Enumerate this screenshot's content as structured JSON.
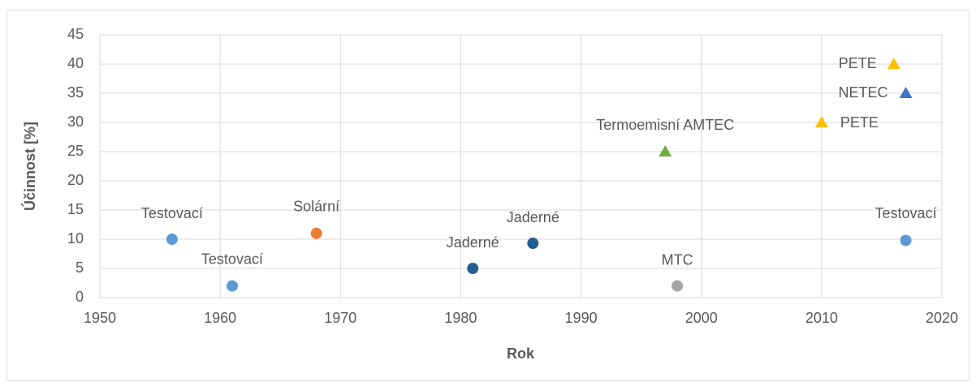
{
  "chart_data": {
    "type": "scatter",
    "x_label": "Rok",
    "y_label": "Účinnost [%]",
    "xlim": [
      1950,
      2020
    ],
    "xticks": [
      1950,
      1960,
      1970,
      1980,
      1990,
      2000,
      2010,
      2020
    ],
    "ylim": [
      0,
      45
    ],
    "yticks": [
      0,
      5,
      10,
      15,
      20,
      25,
      30,
      35,
      40,
      45
    ],
    "grid": true,
    "points": [
      {
        "label": "Testovací",
        "x": 1956,
        "y": 10,
        "color": "#5b9bd5",
        "marker": "circle"
      },
      {
        "label": "Testovací",
        "x": 1961,
        "y": 2,
        "color": "#5b9bd5",
        "marker": "circle"
      },
      {
        "label": "Solární",
        "x": 1968,
        "y": 11,
        "color": "#ed7d31",
        "marker": "circle"
      },
      {
        "label": "Jaderné",
        "x": 1981,
        "y": 5,
        "color": "#255e91",
        "marker": "circle"
      },
      {
        "label": "Jaderné",
        "x": 1986,
        "y": 9.3,
        "color": "#255e91",
        "marker": "circle"
      },
      {
        "label": "Termoemisní AMTEC",
        "x": 1997,
        "y": 25,
        "color": "#70ad47",
        "marker": "triangle"
      },
      {
        "label": "MTC",
        "x": 1998,
        "y": 2,
        "color": "#a5a5a5",
        "marker": "circle"
      },
      {
        "label": "PETE",
        "x": 2010,
        "y": 30,
        "color": "#ffc000",
        "marker": "triangle"
      },
      {
        "label": "PETE",
        "x": 2016,
        "y": 40,
        "color": "#ffc000",
        "marker": "triangle"
      },
      {
        "label": "NETEC",
        "x": 2017,
        "y": 35,
        "color": "#4472c4",
        "marker": "triangle"
      },
      {
        "label": "Testovací",
        "x": 2017,
        "y": 9.8,
        "color": "#5b9bd5",
        "marker": "circle"
      }
    ]
  }
}
